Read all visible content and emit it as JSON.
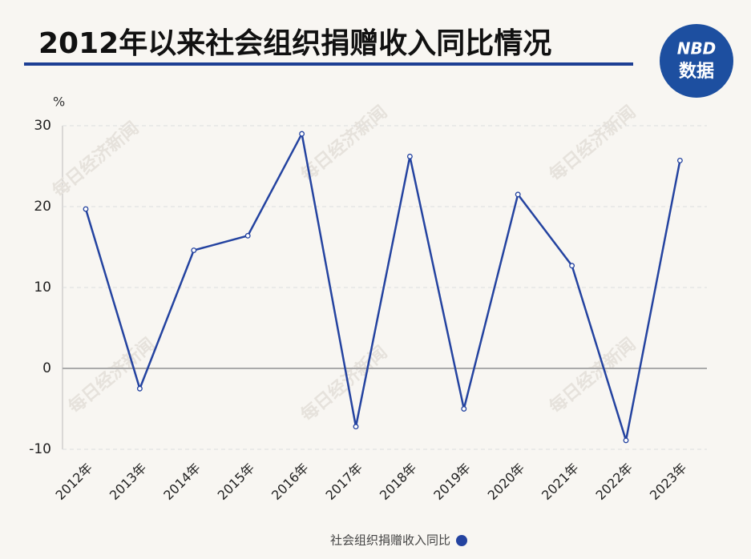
{
  "chart_data": {
    "type": "line",
    "title": "2012年以来社会组织捐赠收入同比情况",
    "logo": {
      "top": "NBD",
      "bottom": "数据"
    },
    "watermark": "每日经济新闻",
    "y_label": "%",
    "categories": [
      "2012年",
      "2013年",
      "2014年",
      "2015年",
      "2016年",
      "2017年",
      "2018年",
      "2019年",
      "2020年",
      "2021年",
      "2022年",
      "2023年"
    ],
    "series": [
      {
        "name": "社会组织捐赠收入同比",
        "color": "#2443a0",
        "values": [
          19.7,
          -2.5,
          14.6,
          16.4,
          29.0,
          -7.2,
          26.2,
          -5.0,
          21.5,
          12.7,
          -8.9,
          25.7
        ]
      }
    ],
    "ylim": [
      -10,
      30
    ],
    "yticks": [
      -10,
      0,
      10,
      20,
      30
    ],
    "grid": true,
    "legend": "bottom"
  }
}
